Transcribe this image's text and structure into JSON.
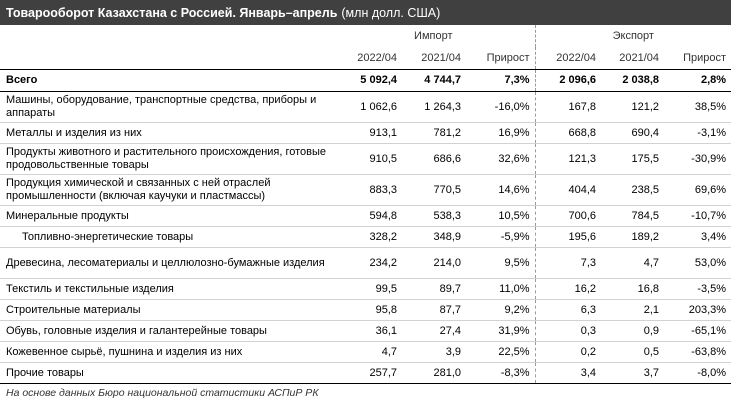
{
  "title": {
    "bold": "Товарооборот Казахстана с Россией. Январь–апрель",
    "sub": "(млн долл. США)"
  },
  "groups": {
    "import": "Импорт",
    "export": "Экспорт"
  },
  "columns": [
    "2022/04",
    "2021/04",
    "Прирост",
    "2022/04",
    "2021/04",
    "Прирост"
  ],
  "total": {
    "name": "Всего",
    "values": [
      "5 092,4",
      "4 744,7",
      "7,3%",
      "2 096,6",
      "2 038,8",
      "2,8%"
    ]
  },
  "rows": [
    {
      "name": "Машины, оборудование, транспортные средства, приборы и аппараты",
      "values": [
        "1 062,6",
        "1 264,3",
        "-16,0%",
        "167,8",
        "121,2",
        "38,5%"
      ]
    },
    {
      "name": "Металлы и изделия из них",
      "values": [
        "913,1",
        "781,2",
        "16,9%",
        "668,8",
        "690,4",
        "-3,1%"
      ]
    },
    {
      "name": "Продукты животного и растительного происхождения, готовые продовольственные товары",
      "values": [
        "910,5",
        "686,6",
        "32,6%",
        "121,3",
        "175,5",
        "-30,9%"
      ]
    },
    {
      "name": "Продукция химической и связанных с ней отраслей промышленности (включая каучуки и пластмассы)",
      "values": [
        "883,3",
        "770,5",
        "14,6%",
        "404,4",
        "238,5",
        "69,6%"
      ]
    },
    {
      "name": "Минеральные продукты",
      "values": [
        "594,8",
        "538,3",
        "10,5%",
        "700,6",
        "784,5",
        "-10,7%"
      ]
    },
    {
      "name": "Топливно-энергетические товары",
      "values": [
        "328,2",
        "348,9",
        "-5,9%",
        "195,6",
        "189,2",
        "3,4%"
      ]
    },
    {
      "name": "Древесина, лесоматериалы и целлюлозно-бумажные изделия",
      "values": [
        "234,2",
        "214,0",
        "9,5%",
        "7,3",
        "4,7",
        "53,0%"
      ]
    },
    {
      "name": "Текстиль и текстильные изделия",
      "values": [
        "99,5",
        "89,7",
        "11,0%",
        "16,2",
        "16,8",
        "-3,5%"
      ]
    },
    {
      "name": "Строительные материалы",
      "values": [
        "95,8",
        "87,7",
        "9,2%",
        "6,3",
        "2,1",
        "203,3%"
      ]
    },
    {
      "name": "Обувь, головные изделия и галантерейные товары",
      "values": [
        "36,1",
        "27,4",
        "31,9%",
        "0,3",
        "0,9",
        "-65,1%"
      ]
    },
    {
      "name": "Кожевенное сырьё, пушнина и изделия из них",
      "values": [
        "4,7",
        "3,9",
        "22,5%",
        "0,2",
        "0,5",
        "-63,8%"
      ]
    },
    {
      "name": "Прочие товары",
      "values": [
        "257,7",
        "281,0",
        "-8,3%",
        "3,4",
        "3,7",
        "-8,0%"
      ]
    }
  ],
  "footnote": "На основе данных Бюро национальной статистики АСПиР РК"
}
